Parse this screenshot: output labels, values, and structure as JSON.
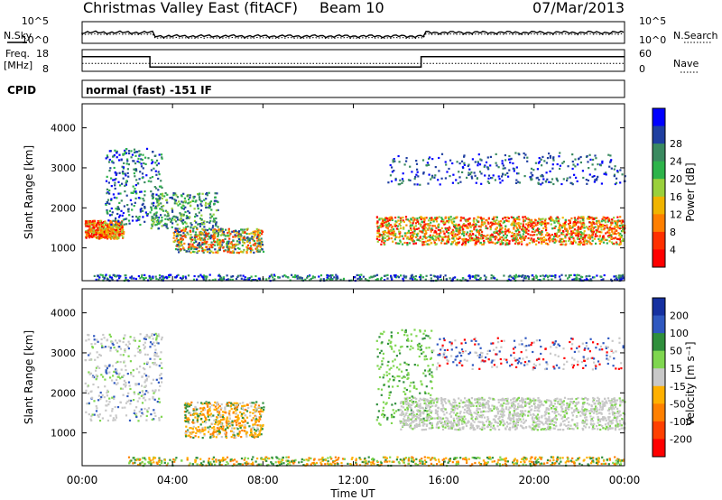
{
  "header": {
    "station": "Christmas Valley East (fitACF)",
    "beam": "Beam 10",
    "date": "07/Mar/2013"
  },
  "left_labels": {
    "nsky": "N.Sky",
    "freq": "Freq.",
    "freq_unit": "[MHz]",
    "cpid": "CPID"
  },
  "right_labels": {
    "nsearch": "N.Search",
    "nave": "Nave"
  },
  "cpid_text": "normal (fast) -151 IF",
  "colors": {
    "power": [
      "#0000ff",
      "#1f3fa0",
      "#3a8a60",
      "#2db34a",
      "#9ad03c",
      "#f0b400",
      "#ff7f00",
      "#ff3000",
      "#ff0000"
    ],
    "velocity": [
      "#1530a0",
      "#2f58c0",
      "#2f8f3c",
      "#7fd64f",
      "#c8c8c8",
      "#ffb000",
      "#ff8000",
      "#ff4000",
      "#ff0000"
    ],
    "noise_line": "#000000"
  },
  "chart_data": [
    {
      "type": "line",
      "panel": "noise",
      "yticks_left": [
        "10^5",
        "10^0"
      ],
      "yticks_right": [
        "10^5",
        "10^0"
      ],
      "series": [
        {
          "name": "N.Sky",
          "style": "solid"
        },
        {
          "name": "N.Search",
          "style": "dotted"
        }
      ]
    },
    {
      "type": "line",
      "panel": "frequency",
      "yticks_left": [
        "18",
        "8"
      ],
      "yticks_right": [
        "60",
        "0"
      ],
      "series": [
        {
          "name": "Freq.",
          "style": "solid",
          "x": [
            "00:00",
            "03:00",
            "03:00",
            "15:00",
            "15:00",
            "24:00"
          ],
          "y": [
            14.8,
            14.8,
            10.0,
            10.0,
            14.8,
            14.8
          ]
        },
        {
          "name": "Nave",
          "style": "dotted",
          "x": [
            "00:00",
            "24:00"
          ],
          "y": [
            22,
            22
          ]
        }
      ]
    },
    {
      "type": "heatmap",
      "panel": "power",
      "ylabel": "Slant Range [km]",
      "yticks": [
        "1000",
        "2000",
        "3000",
        "4000"
      ],
      "ylim": [
        180,
        4600
      ],
      "xlim": [
        "00:00",
        "24:00"
      ],
      "colorbar_label": "Power [dB]",
      "colorbar_ticks": [
        "4",
        "8",
        "12",
        "16",
        "20",
        "24",
        "28"
      ]
    },
    {
      "type": "heatmap",
      "panel": "velocity",
      "ylabel": "Slant Range [km]",
      "xlabel": "Time UT",
      "yticks": [
        "1000",
        "2000",
        "3000",
        "4000"
      ],
      "xticks": [
        "00:00",
        "04:00",
        "08:00",
        "12:00",
        "16:00",
        "20:00",
        "00:00"
      ],
      "ylim": [
        180,
        4600
      ],
      "xlim": [
        "00:00",
        "24:00"
      ],
      "colorbar_label": "Velocity [m s⁻¹]",
      "colorbar_ticks": [
        "200",
        "100",
        "50",
        "15",
        "-15",
        "-50",
        "-100",
        "-200"
      ]
    }
  ]
}
